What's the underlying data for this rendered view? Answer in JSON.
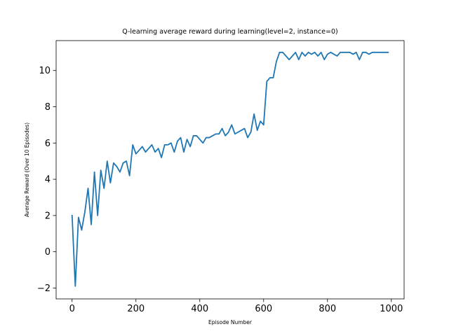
{
  "chart_data": {
    "type": "line",
    "title": "Q-learning average reward during learning(level=2, instance=0)",
    "xlabel": "Episode Number",
    "ylabel": "Average Reward (Over 10 Episodes)",
    "xlim": [
      -50,
      1040
    ],
    "ylim": [
      -2.6,
      11.65
    ],
    "xticks": [
      0,
      200,
      400,
      600,
      800,
      1000
    ],
    "yticks": [
      -2,
      0,
      2,
      4,
      6,
      8,
      10
    ],
    "grid": false,
    "line_color": "#1f77b4",
    "series": [
      {
        "name": "",
        "x": [
          0,
          10,
          20,
          30,
          40,
          50,
          60,
          70,
          80,
          90,
          100,
          110,
          120,
          130,
          140,
          150,
          160,
          170,
          180,
          190,
          200,
          210,
          220,
          230,
          240,
          250,
          260,
          270,
          280,
          290,
          300,
          310,
          320,
          330,
          340,
          350,
          360,
          370,
          380,
          390,
          400,
          410,
          420,
          430,
          440,
          450,
          460,
          470,
          480,
          490,
          500,
          510,
          520,
          530,
          540,
          550,
          560,
          570,
          580,
          590,
          600,
          610,
          620,
          630,
          640,
          650,
          660,
          670,
          680,
          690,
          700,
          710,
          720,
          730,
          740,
          750,
          760,
          770,
          780,
          790,
          800,
          810,
          820,
          830,
          840,
          850,
          860,
          870,
          880,
          890,
          900,
          910,
          920,
          930,
          940,
          950,
          960,
          970,
          980,
          990
        ],
        "values": [
          2.0,
          -1.9,
          1.9,
          1.2,
          2.2,
          3.5,
          1.5,
          4.4,
          2.0,
          4.5,
          3.5,
          5.0,
          3.8,
          4.9,
          4.7,
          4.4,
          4.9,
          5.0,
          4.2,
          5.9,
          5.4,
          5.6,
          5.8,
          5.5,
          5.7,
          5.9,
          5.5,
          5.7,
          5.2,
          5.9,
          5.9,
          6.0,
          5.5,
          6.1,
          6.3,
          5.5,
          6.2,
          5.8,
          6.4,
          6.4,
          6.2,
          6.0,
          6.3,
          6.3,
          6.4,
          6.5,
          6.5,
          6.8,
          6.4,
          6.6,
          7.0,
          6.5,
          6.6,
          6.7,
          6.8,
          6.3,
          6.6,
          7.6,
          6.7,
          7.2,
          7.0,
          9.4,
          9.6,
          9.6,
          10.5,
          11.0,
          11.0,
          10.8,
          10.6,
          10.8,
          11.0,
          10.6,
          11.0,
          10.8,
          11.0,
          10.9,
          11.0,
          10.8,
          11.0,
          10.6,
          10.9,
          11.0,
          10.9,
          10.8,
          11.0,
          11.0,
          11.0,
          11.0,
          10.9,
          11.0,
          10.6,
          11.0,
          11.0,
          10.9,
          11.0,
          11.0,
          11.0,
          11.0,
          11.0,
          11.0
        ]
      }
    ]
  }
}
